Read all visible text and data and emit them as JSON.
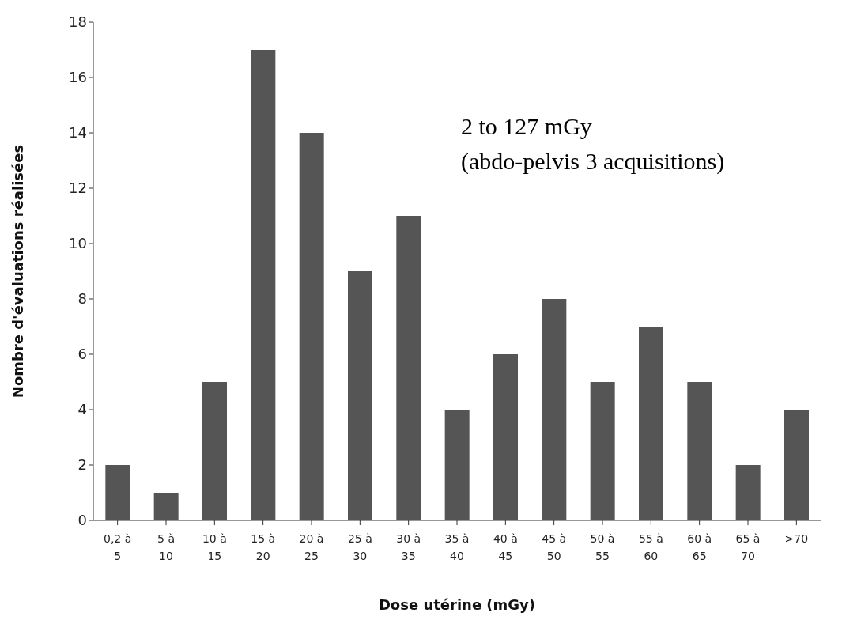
{
  "chart_data": {
    "type": "bar",
    "xlabel": "Dose utérine (mGy)",
    "ylabel": "Nombre d'évaluations réalisées",
    "categories": [
      "0,2 à 5",
      "5 à 10",
      "10 à 15",
      "15 à 20",
      "20 à 25",
      "25 à 30",
      "30 à 35",
      "35 à 40",
      "40 à 45",
      "45 à 50",
      "50 à 55",
      "55 à 60",
      "60 à 65",
      "65 à 70",
      ">70"
    ],
    "values": [
      2,
      1,
      5,
      17,
      14,
      9,
      11,
      4,
      6,
      8,
      5,
      7,
      5,
      2,
      4
    ],
    "color": "#555555",
    "ylim": [
      0,
      18
    ],
    "yticks": [
      0,
      2,
      4,
      6,
      8,
      10,
      12,
      14,
      16,
      18
    ],
    "grid": false,
    "annotations": [
      "2 to 127 mGy",
      "(abdo-pelvis 3 acquisitions)"
    ]
  }
}
